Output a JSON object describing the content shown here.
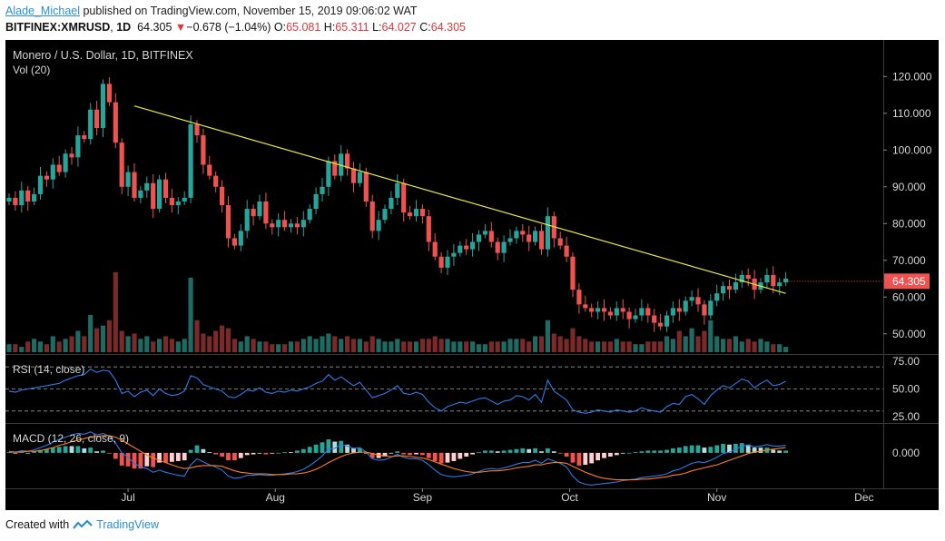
{
  "header": {
    "author": "Alade_Michael",
    "published_text": "published on TradingView.com, November 15, 2019 09:06:02 WAT",
    "symbol": "BITFINEX:XMRUSD",
    "interval": "1D",
    "last": "64.305",
    "change_arrow": "▼",
    "change": "−0.678 (−1.04%)",
    "o_label": "O:",
    "o_val": "65.081",
    "h_label": "H:",
    "h_val": "65.311",
    "l_label": "L:",
    "l_val": "64.027",
    "c_label": "C:",
    "c_val": "64.305"
  },
  "chart_title": "Monero / U.S. Dollar, 1D, BITFINEX",
  "vol_label": "Vol (20)",
  "rsi_label": "RSI (14, close)",
  "macd_label": "MACD (12, 26, close, 9)",
  "footer": {
    "created_with": "Created with",
    "brand": "TradingView"
  },
  "colors": {
    "up": "#26a69a",
    "down": "#ef5350",
    "trendline": "#e8e83a",
    "rsi": "#2b7be8",
    "macd": "#2b7be8",
    "signal": "#ff7d1a",
    "background": "#000000"
  },
  "chart_data": [
    {
      "type": "candlestick",
      "title": "Monero / U.S. Dollar, 1D, BITFINEX",
      "x_tick_labels": [
        "Jul",
        "Aug",
        "Sep",
        "Oct",
        "Nov",
        "Dec"
      ],
      "y_tick_labels": [
        "50.000",
        "60.000",
        "70.000",
        "80.000",
        "90.000",
        "100.000",
        "110.000",
        "120.000"
      ],
      "ylim": [
        45,
        126
      ],
      "last_price_label": "64.305",
      "close": [
        87,
        85,
        89,
        86,
        88,
        93,
        92,
        96,
        94,
        99,
        98,
        104,
        103,
        111,
        106,
        118,
        113,
        102,
        90,
        94,
        87,
        89,
        91,
        84,
        92,
        87,
        85,
        86,
        87,
        107,
        104,
        96,
        93,
        90,
        85,
        76,
        74,
        78,
        84,
        82,
        86,
        80,
        79,
        81,
        79,
        80,
        79,
        81,
        84,
        88,
        90,
        97,
        93,
        99,
        95,
        91,
        94,
        86,
        78,
        81,
        84,
        87,
        91,
        83,
        82,
        84,
        82,
        75,
        71,
        68,
        71,
        72,
        74,
        73,
        75,
        77,
        78,
        75,
        72,
        75,
        76,
        78,
        77,
        75,
        78,
        73,
        82,
        76,
        74,
        71,
        62,
        58,
        57,
        56,
        57,
        56,
        55,
        57,
        56,
        54,
        55,
        57,
        55,
        53,
        52,
        55,
        57,
        56,
        59,
        60,
        58,
        55,
        59,
        61,
        63,
        62,
        64,
        66,
        65,
        62,
        64,
        66,
        63,
        64,
        65
      ],
      "volume": [
        3,
        3,
        2,
        4,
        5,
        4,
        3,
        6,
        4,
        5,
        6,
        8,
        6,
        14,
        9,
        10,
        12,
        30,
        8,
        6,
        7,
        5,
        6,
        4,
        5,
        6,
        5,
        4,
        5,
        28,
        12,
        7,
        6,
        8,
        10,
        9,
        5,
        4,
        6,
        5,
        4,
        4,
        3,
        3,
        3,
        4,
        4,
        5,
        6,
        5,
        6,
        7,
        6,
        5,
        6,
        5,
        5,
        4,
        6,
        5,
        4,
        4,
        5,
        4,
        4,
        4,
        5,
        5,
        6,
        5,
        5,
        4,
        4,
        4,
        4,
        3,
        3,
        4,
        4,
        4,
        5,
        5,
        5,
        4,
        6,
        6,
        12,
        7,
        6,
        5,
        9,
        6,
        5,
        4,
        4,
        4,
        4,
        5,
        4,
        4,
        3,
        3,
        4,
        4,
        4,
        6,
        5,
        8,
        6,
        9,
        6,
        8,
        12,
        6,
        5,
        5,
        6,
        4,
        5,
        4,
        5,
        4,
        3,
        3,
        2
      ],
      "trendline": [
        {
          "x": 20,
          "y": 112
        },
        {
          "x": 124,
          "y": 61
        }
      ],
      "rsi": {
        "ylim": [
          20,
          80
        ],
        "levels": [
          70,
          50,
          30
        ],
        "tick_labels": [
          "75.00",
          "50.00",
          "25.00"
        ],
        "values": [
          48,
          47,
          49,
          50,
          51,
          52,
          53,
          54,
          55,
          58,
          60,
          62,
          63,
          68,
          65,
          67,
          66,
          58,
          46,
          48,
          43,
          47,
          49,
          44,
          50,
          46,
          44,
          45,
          48,
          62,
          60,
          54,
          52,
          50,
          48,
          43,
          42,
          45,
          49,
          48,
          51,
          47,
          46,
          48,
          47,
          49,
          48,
          50,
          52,
          55,
          57,
          63,
          58,
          61,
          57,
          53,
          56,
          49,
          42,
          44,
          46,
          49,
          53,
          46,
          45,
          47,
          45,
          38,
          33,
          30,
          34,
          36,
          38,
          37,
          39,
          41,
          42,
          39,
          36,
          39,
          40,
          44,
          43,
          40,
          45,
          38,
          58,
          48,
          44,
          40,
          31,
          29,
          28,
          29,
          31,
          30,
          29,
          31,
          30,
          29,
          30,
          33,
          31,
          30,
          29,
          34,
          37,
          36,
          43,
          45,
          41,
          36,
          44,
          49,
          53,
          51,
          55,
          59,
          57,
          51,
          55,
          58,
          53,
          54,
          57
        ]
      },
      "macd": {
        "ylim": [
          -4.5,
          3.5
        ],
        "tick_labels": [
          "0.000"
        ],
        "macd_line": [
          0.2,
          0.1,
          0.3,
          0.2,
          0.4,
          0.7,
          1.0,
          1.4,
          1.8,
          2.1,
          2.4,
          2.6,
          2.5,
          2.8,
          2.4,
          2.6,
          2.2,
          1.3,
          0.0,
          -0.6,
          -1.4,
          -1.9,
          -2.1,
          -2.6,
          -2.3,
          -2.6,
          -2.8,
          -3.0,
          -3.1,
          -1.6,
          -0.8,
          -1.2,
          -1.6,
          -1.9,
          -2.3,
          -3.1,
          -3.4,
          -3.3,
          -3.0,
          -3.0,
          -2.9,
          -3.0,
          -3.0,
          -2.9,
          -2.8,
          -2.7,
          -2.5,
          -2.2,
          -1.7,
          -1.1,
          -0.4,
          0.5,
          0.6,
          1.1,
          0.9,
          0.6,
          0.7,
          0.1,
          -0.8,
          -1.0,
          -0.9,
          -0.6,
          -0.2,
          -0.6,
          -0.8,
          -0.8,
          -1.0,
          -1.6,
          -2.3,
          -2.9,
          -3.1,
          -3.2,
          -3.1,
          -3.0,
          -2.8,
          -2.5,
          -2.2,
          -2.1,
          -2.2,
          -2.0,
          -1.8,
          -1.5,
          -1.3,
          -1.3,
          -1.0,
          -1.4,
          -0.8,
          -1.1,
          -1.4,
          -1.9,
          -3.1,
          -3.9,
          -4.2,
          -4.3,
          -4.2,
          -4.1,
          -4.0,
          -3.9,
          -3.7,
          -3.6,
          -3.5,
          -3.3,
          -3.2,
          -3.1,
          -3.0,
          -2.8,
          -2.4,
          -2.2,
          -1.8,
          -1.4,
          -1.2,
          -1.3,
          -1.0,
          -0.6,
          -0.1,
          0.1,
          0.5,
          0.9,
          1.0,
          0.8,
          0.9,
          1.1,
          0.9,
          0.9,
          1.0
        ],
        "signal_line": [
          0.1,
          0.1,
          0.1,
          0.2,
          0.2,
          0.3,
          0.5,
          0.7,
          1.0,
          1.2,
          1.5,
          1.7,
          1.9,
          2.1,
          2.2,
          2.3,
          2.3,
          2.1,
          1.7,
          1.2,
          0.7,
          0.2,
          -0.3,
          -0.7,
          -1.0,
          -1.3,
          -1.6,
          -1.9,
          -2.1,
          -2.0,
          -1.8,
          -1.7,
          -1.7,
          -1.7,
          -1.8,
          -2.1,
          -2.4,
          -2.6,
          -2.7,
          -2.8,
          -2.8,
          -2.8,
          -2.9,
          -2.9,
          -2.9,
          -2.8,
          -2.8,
          -2.7,
          -2.5,
          -2.2,
          -1.8,
          -1.3,
          -0.9,
          -0.5,
          -0.2,
          0.0,
          0.1,
          0.1,
          -0.1,
          -0.3,
          -0.4,
          -0.5,
          -0.4,
          -0.4,
          -0.5,
          -0.6,
          -0.7,
          -0.9,
          -1.2,
          -1.5,
          -1.8,
          -2.1,
          -2.3,
          -2.5,
          -2.6,
          -2.6,
          -2.5,
          -2.4,
          -2.4,
          -2.3,
          -2.2,
          -2.0,
          -1.9,
          -1.8,
          -1.6,
          -1.6,
          -1.4,
          -1.3,
          -1.3,
          -1.4,
          -1.8,
          -2.2,
          -2.6,
          -2.9,
          -3.2,
          -3.4,
          -3.5,
          -3.6,
          -3.6,
          -3.6,
          -3.6,
          -3.5,
          -3.5,
          -3.4,
          -3.3,
          -3.2,
          -3.0,
          -2.9,
          -2.7,
          -2.4,
          -2.2,
          -2.0,
          -1.8,
          -1.6,
          -1.3,
          -1.0,
          -0.7,
          -0.4,
          -0.1,
          0.1,
          0.2,
          0.4,
          0.5,
          0.6,
          0.7
        ]
      }
    }
  ]
}
